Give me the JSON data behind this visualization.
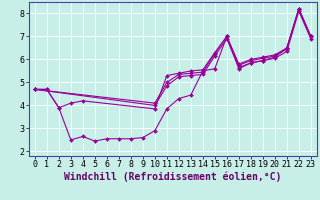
{
  "background_color": "#c8eee8",
  "line_color": "#990099",
  "grid_color": "#aadddd",
  "xlabel": "Windchill (Refroidissement éolien,°C)",
  "xlim": [
    -0.5,
    23.5
  ],
  "ylim": [
    1.8,
    8.5
  ],
  "yticks": [
    2,
    3,
    4,
    5,
    6,
    7,
    8
  ],
  "xticks": [
    0,
    1,
    2,
    3,
    4,
    5,
    6,
    7,
    8,
    9,
    10,
    11,
    12,
    13,
    14,
    15,
    16,
    17,
    18,
    19,
    20,
    21,
    22,
    23
  ],
  "series": [
    {
      "x": [
        0,
        1,
        2,
        3,
        4,
        10,
        11,
        12,
        13,
        14,
        15,
        16,
        17,
        18,
        19,
        20,
        21,
        22,
        23
      ],
      "y": [
        4.7,
        4.7,
        3.9,
        4.1,
        4.2,
        3.85,
        5.3,
        5.4,
        5.5,
        5.55,
        6.3,
        7.0,
        5.8,
        6.0,
        6.1,
        6.2,
        6.5,
        8.2,
        7.0
      ]
    },
    {
      "x": [
        0,
        1,
        2,
        3,
        4,
        5,
        6,
        7,
        8,
        9,
        10,
        11,
        12,
        13,
        14,
        15,
        16,
        17,
        18,
        19,
        20,
        21,
        22,
        23
      ],
      "y": [
        4.7,
        4.7,
        3.9,
        2.5,
        2.65,
        2.45,
        2.55,
        2.55,
        2.55,
        2.6,
        2.9,
        3.85,
        4.3,
        4.45,
        5.5,
        5.6,
        7.0,
        5.6,
        5.85,
        5.95,
        6.1,
        6.5,
        8.2,
        7.0
      ]
    },
    {
      "x": [
        0,
        10,
        11,
        12,
        13,
        14,
        15,
        16,
        17,
        18,
        19,
        20,
        21,
        22,
        23
      ],
      "y": [
        4.7,
        4.1,
        5.0,
        5.35,
        5.4,
        5.45,
        6.25,
        7.0,
        5.75,
        5.95,
        6.05,
        6.15,
        6.45,
        8.2,
        7.0
      ]
    },
    {
      "x": [
        0,
        10,
        11,
        12,
        13,
        14,
        15,
        16,
        17,
        18,
        19,
        20,
        21,
        22,
        23
      ],
      "y": [
        4.7,
        4.0,
        4.85,
        5.25,
        5.3,
        5.35,
        6.15,
        6.9,
        5.65,
        5.85,
        5.95,
        6.05,
        6.35,
        8.1,
        6.9
      ]
    }
  ],
  "xlabel_fontsize": 7,
  "tick_fontsize": 6,
  "border_color": "#660066",
  "spine_color": "#4444aa",
  "marker_size": 2.0,
  "line_width": 0.8
}
